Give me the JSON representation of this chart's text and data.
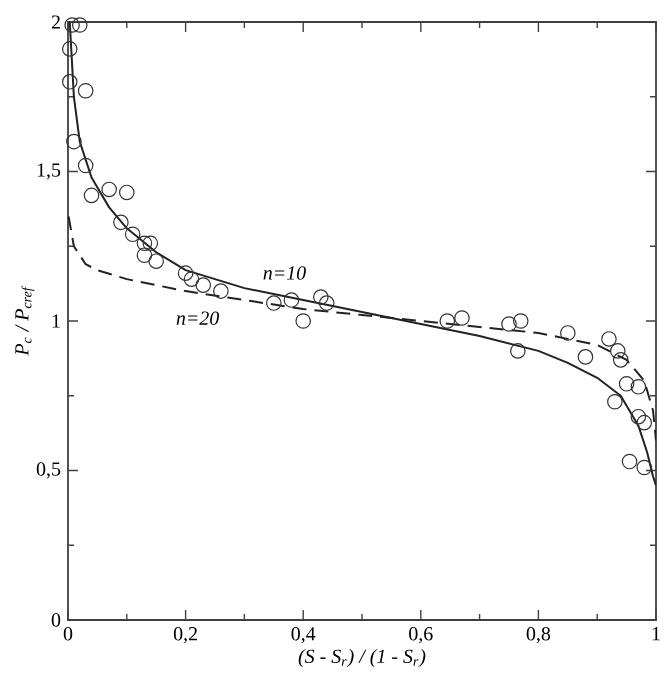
{
  "chart_data": {
    "type": "line",
    "xlabel": "(S - S$_{r}$) / (1 - S$_{r}$)",
    "ylabel": "P$_{c}$ / P$_{cref}$",
    "xlim": [
      0,
      1
    ],
    "ylim": [
      0,
      2
    ],
    "xticks": [
      0,
      {
        "value": 0.2,
        "label": "0,2"
      },
      {
        "value": 0.4,
        "label": "0,4"
      },
      {
        "value": 0.6,
        "label": "0,6"
      },
      {
        "value": 0.8,
        "label": "0,8"
      },
      1
    ],
    "yticks": [
      0,
      {
        "value": 0.5,
        "label": "0,5"
      },
      1,
      {
        "value": 1.5,
        "label": "1,5"
      },
      2
    ],
    "grid": false,
    "legend": false,
    "series": [
      {
        "type": "scatter",
        "marker": "circle",
        "color": "#333333",
        "x": [
          0.007,
          0.02,
          0.003,
          0.003,
          0.03,
          0.01,
          0.03,
          0.04,
          0.07,
          0.1,
          0.09,
          0.11,
          0.13,
          0.14,
          0.13,
          0.15,
          0.2,
          0.21,
          0.23,
          0.26,
          0.35,
          0.38,
          0.4,
          0.43,
          0.44,
          0.645,
          0.67,
          0.75,
          0.77,
          0.765,
          0.85,
          0.88,
          0.92,
          0.935,
          0.94,
          0.95,
          0.97,
          0.93,
          0.97,
          0.98,
          0.955,
          0.98
        ],
        "values": [
          1.99,
          1.99,
          1.91,
          1.8,
          1.77,
          1.6,
          1.52,
          1.42,
          1.44,
          1.43,
          1.33,
          1.29,
          1.26,
          1.26,
          1.22,
          1.2,
          1.16,
          1.14,
          1.12,
          1.1,
          1.06,
          1.07,
          1.0,
          1.08,
          1.06,
          1.0,
          1.01,
          0.99,
          1.0,
          0.9,
          0.96,
          0.88,
          0.94,
          0.9,
          0.87,
          0.79,
          0.78,
          0.73,
          0.68,
          0.66,
          0.53,
          0.51
        ]
      },
      {
        "name": "n=10",
        "line_style": "solid",
        "color": "#222222",
        "x": [
          0.003,
          0.01,
          0.02,
          0.04,
          0.07,
          0.1,
          0.15,
          0.2,
          0.3,
          0.4,
          0.5,
          0.6,
          0.7,
          0.8,
          0.85,
          0.9,
          0.94,
          0.97,
          0.985,
          0.995,
          1
        ],
        "values": [
          2.0,
          1.75,
          1.6,
          1.48,
          1.38,
          1.31,
          1.23,
          1.17,
          1.11,
          1.07,
          1.03,
          0.99,
          0.95,
          0.9,
          0.86,
          0.81,
          0.75,
          0.65,
          0.56,
          0.48,
          0.45
        ]
      },
      {
        "name": "n=20",
        "line_style": "dashed",
        "color": "#222222",
        "x": [
          0.001,
          0.01,
          0.03,
          0.05,
          0.1,
          0.2,
          0.3,
          0.4,
          0.5,
          0.6,
          0.7,
          0.8,
          0.9,
          0.95,
          0.98,
          0.995,
          1
        ],
        "values": [
          1.35,
          1.25,
          1.19,
          1.17,
          1.14,
          1.1,
          1.07,
          1.04,
          1.02,
          1.0,
          0.98,
          0.96,
          0.92,
          0.87,
          0.8,
          0.7,
          0.6
        ]
      }
    ]
  }
}
